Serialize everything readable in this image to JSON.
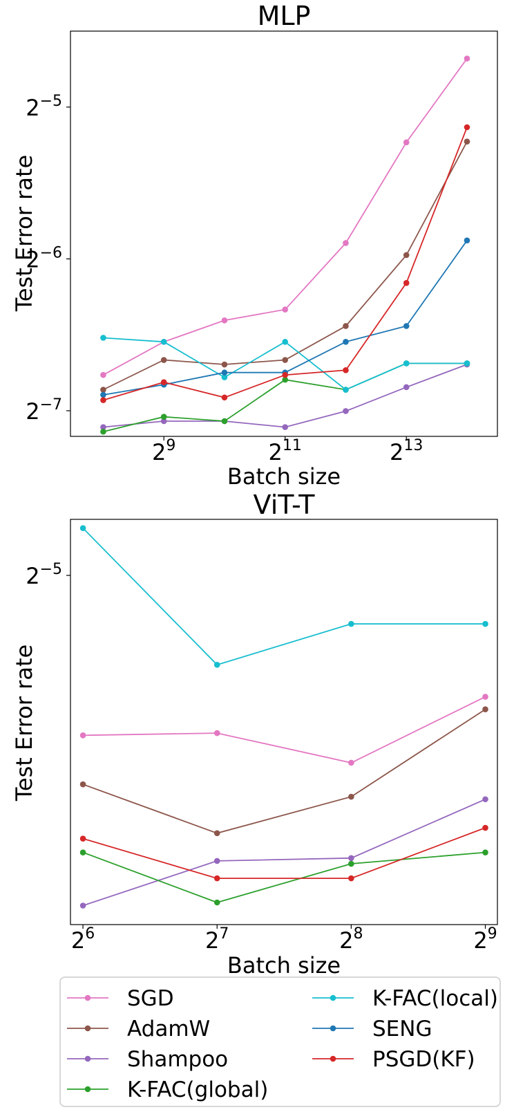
{
  "colors": {
    "SGD": "#e377c2",
    "AdamW": "#8c564b",
    "Shampoo": "#9467bd",
    "K-FAC(global)": "#2ca02c",
    "K-FAC(local)": "#17becf",
    "SENG": "#1f77b4",
    "PSGD(KF)": "#d62728"
  },
  "legend": {
    "location": "bottom, below charts",
    "columns": 2,
    "entries": [
      "SGD",
      "AdamW",
      "Shampoo",
      "K-FAC(global)",
      "K-FAC(local)",
      "SENG",
      "PSGD(KF)"
    ]
  },
  "chart_data": [
    {
      "type": "line",
      "title": "MLP",
      "xlabel": "Batch size",
      "ylabel": "Test Error rate",
      "xscale": "log2",
      "yscale": "log2",
      "grid": false,
      "xlim": [
        176,
        23200
      ],
      "ylim": [
        0.00695,
        0.0442
      ],
      "x": [
        256,
        512,
        1024,
        2048,
        4096,
        8192,
        16384
      ],
      "xticks": [
        {
          "value": 512,
          "base": "2",
          "exp": "9"
        },
        {
          "value": 2048,
          "base": "2",
          "exp": "11"
        },
        {
          "value": 8192,
          "base": "2",
          "exp": "13"
        }
      ],
      "yticks": [
        {
          "value": 0.0078125,
          "base": "2",
          "exp": "−7"
        },
        {
          "value": 0.015625,
          "base": "2",
          "exp": "−6"
        },
        {
          "value": 0.03125,
          "base": "2",
          "exp": "−5"
        }
      ],
      "series": [
        {
          "name": "SGD",
          "values": [
            0.0092,
            0.0107,
            0.0118,
            0.0124,
            0.0168,
            0.0266,
            0.039
          ]
        },
        {
          "name": "AdamW",
          "values": [
            0.0086,
            0.00985,
            0.00965,
            0.00985,
            0.0115,
            0.0159,
            0.0267
          ]
        },
        {
          "name": "Shampoo",
          "values": [
            0.00725,
            0.00745,
            0.00745,
            0.00725,
            0.0078,
            0.0087,
            0.00965
          ]
        },
        {
          "name": "K-FAC(global)",
          "values": [
            0.0071,
            0.0076,
            0.00745,
            0.009,
            0.0086,
            0.0097,
            0.0097
          ]
        },
        {
          "name": "K-FAC(local)",
          "values": [
            0.0109,
            0.0107,
            0.0091,
            0.0107,
            0.0086,
            0.0097,
            0.0097
          ]
        },
        {
          "name": "SENG",
          "values": [
            0.0084,
            0.0088,
            0.0093,
            0.0093,
            0.0107,
            0.0115,
            0.017
          ]
        },
        {
          "name": "PSGD(KF)",
          "values": [
            0.0082,
            0.0089,
            0.0083,
            0.0092,
            0.0094,
            0.014,
            0.0285
          ]
        }
      ]
    },
    {
      "type": "line",
      "title": "ViT-T",
      "xlabel": "Batch size",
      "ylabel": "Test Error rate",
      "xscale": "log2",
      "yscale": "log2",
      "grid": false,
      "xlim": [
        60,
        545
      ],
      "ylim": [
        0.0157,
        0.0349
      ],
      "x": [
        64,
        128,
        256,
        512
      ],
      "xticks": [
        {
          "value": 64,
          "base": "2",
          "exp": "6"
        },
        {
          "value": 128,
          "base": "2",
          "exp": "7"
        },
        {
          "value": 256,
          "base": "2",
          "exp": "8"
        },
        {
          "value": 512,
          "base": "2",
          "exp": "9"
        }
      ],
      "yticks": [
        {
          "value": 0.03125,
          "base": "2",
          "exp": "−5"
        }
      ],
      "series": [
        {
          "name": "SGD",
          "values": [
            0.0228,
            0.0229,
            0.0216,
            0.0246
          ]
        },
        {
          "name": "AdamW",
          "values": [
            0.0207,
            0.0188,
            0.0202,
            0.024
          ]
        },
        {
          "name": "Shampoo",
          "values": [
            0.0163,
            0.0178,
            0.0179,
            0.0201
          ]
        },
        {
          "name": "K-FAC(global)",
          "values": [
            0.0181,
            0.0164,
            0.0177,
            0.0181
          ]
        },
        {
          "name": "K-FAC(local)",
          "values": [
            0.0343,
            0.0262,
            0.0284,
            0.0284
          ]
        },
        {
          "name": "PSGD(KF)",
          "values": [
            0.0186,
            0.0172,
            0.0172,
            0.019
          ]
        }
      ]
    }
  ]
}
